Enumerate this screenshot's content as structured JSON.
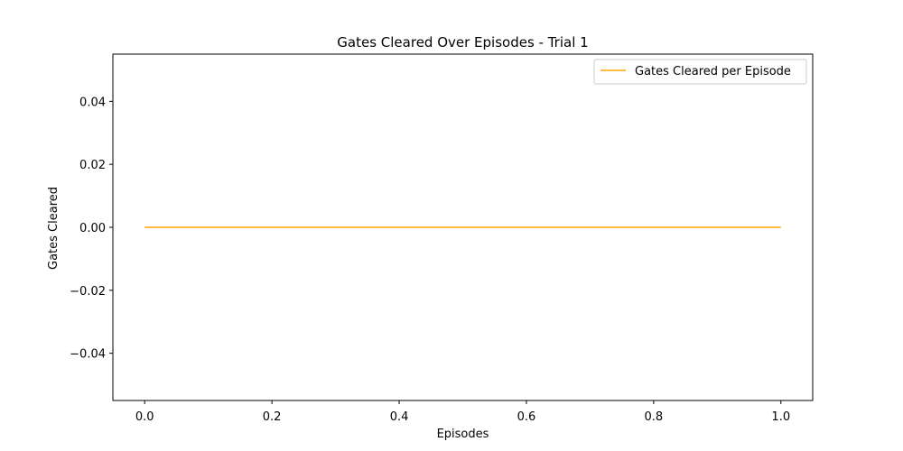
{
  "chart_data": {
    "type": "line",
    "title": "Gates Cleared Over Episodes - Trial 1",
    "xlabel": "Episodes",
    "ylabel": "Gates Cleared",
    "xlim": [
      -0.05,
      1.05
    ],
    "ylim": [
      -0.055,
      0.055
    ],
    "xticks": [
      0.0,
      0.2,
      0.4,
      0.6,
      0.8,
      1.0
    ],
    "xtick_labels": [
      "0.0",
      "0.2",
      "0.4",
      "0.6",
      "0.8",
      "1.0"
    ],
    "yticks": [
      -0.04,
      -0.02,
      0.0,
      0.02,
      0.04
    ],
    "ytick_labels": [
      "−0.04",
      "−0.02",
      "0.00",
      "0.02",
      "0.04"
    ],
    "grid": false,
    "legend_position": "top-right",
    "series": [
      {
        "name": "Gates Cleared per Episode",
        "color": "#ffa500",
        "x": [
          0,
          1
        ],
        "y": [
          0,
          0
        ]
      }
    ]
  }
}
